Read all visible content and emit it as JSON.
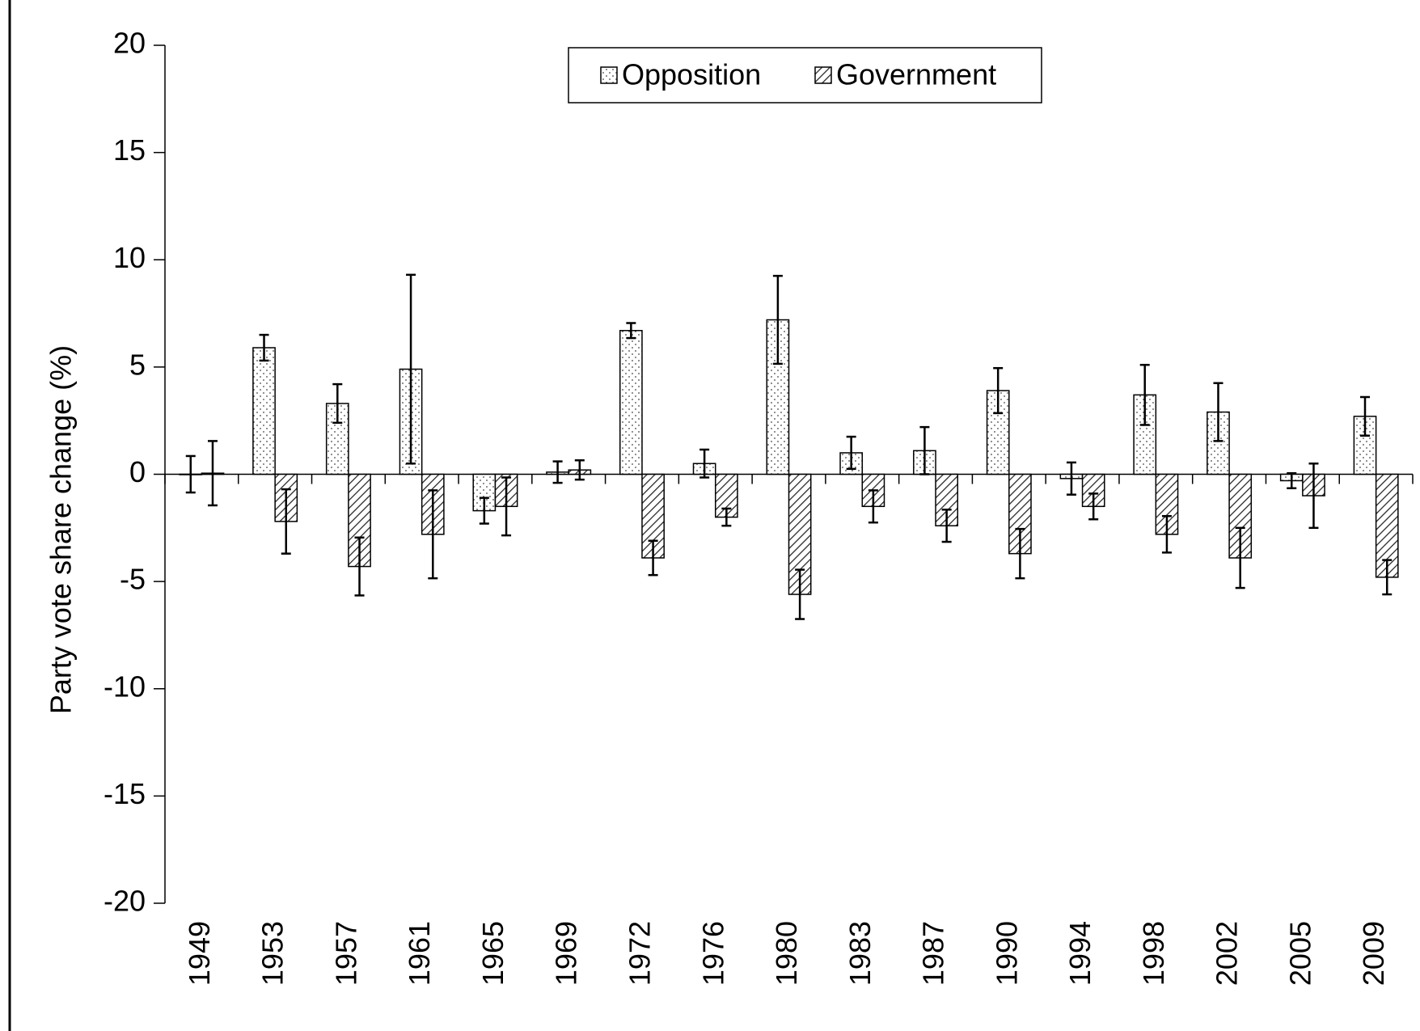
{
  "chart_data": {
    "type": "bar",
    "y_label": "Party vote share change (%)",
    "categories": [
      "1949",
      "1953",
      "1957",
      "1961",
      "1965",
      "1969",
      "1972",
      "1976",
      "1980",
      "1983",
      "1987",
      "1990",
      "1994",
      "1998",
      "2002",
      "2005",
      "2009"
    ],
    "series": [
      {
        "name": "Opposition",
        "color": "#ffffff",
        "pattern": "dots",
        "values": [
          0,
          5.9,
          3.3,
          4.9,
          -1.7,
          0.1,
          6.7,
          0.5,
          7.2,
          1.0,
          1.1,
          3.9,
          -0.2,
          3.7,
          2.9,
          -0.3,
          2.7
        ],
        "errors": [
          0.85,
          0.6,
          0.9,
          4.4,
          0.6,
          0.5,
          0.35,
          0.65,
          2.05,
          0.75,
          1.1,
          1.05,
          0.75,
          1.4,
          1.35,
          0.35,
          0.9
        ]
      },
      {
        "name": "Government",
        "color": "#ffffff",
        "pattern": "hatch",
        "values": [
          0.05,
          -2.2,
          -4.3,
          -2.8,
          -1.5,
          0.2,
          -3.9,
          -2.0,
          -5.6,
          -1.5,
          -2.4,
          -3.7,
          -1.5,
          -2.8,
          -3.9,
          -1.0,
          -4.8
        ],
        "errors": [
          1.5,
          1.5,
          1.35,
          2.05,
          1.35,
          0.45,
          0.8,
          0.4,
          1.15,
          0.75,
          0.75,
          1.15,
          0.6,
          0.85,
          1.4,
          1.5,
          0.8
        ]
      }
    ],
    "ylim": [
      -20,
      20
    ],
    "yticks": [
      -20,
      -15,
      -10,
      -5,
      0,
      5,
      10,
      15,
      20
    ],
    "legend": "top"
  }
}
